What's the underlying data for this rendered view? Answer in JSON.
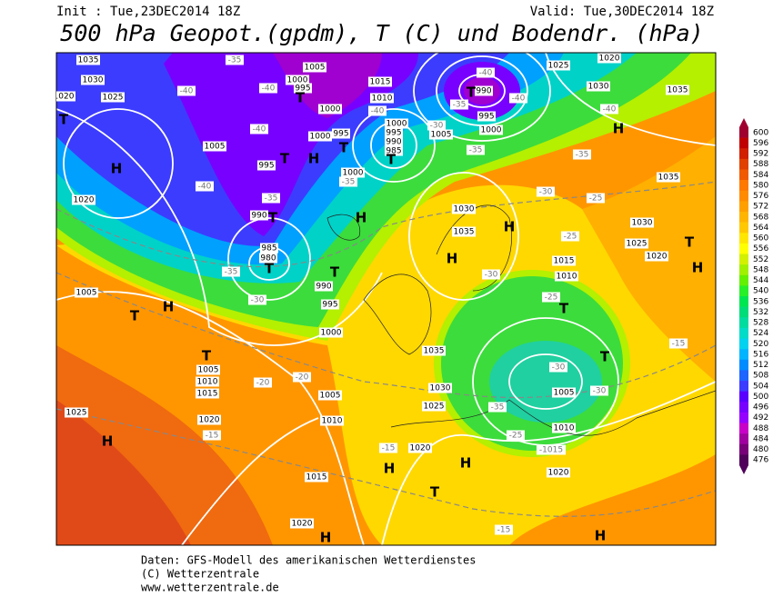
{
  "header": {
    "init": "Init : Tue,23DEC2014 18Z",
    "valid": "Valid: Tue,30DEC2014 18Z",
    "title": "500 hPa Geopot.(gpdm), T (C) und Bodendr. (hPa)"
  },
  "legend": {
    "values": [
      600,
      596,
      592,
      588,
      584,
      580,
      576,
      572,
      568,
      564,
      560,
      556,
      552,
      548,
      544,
      540,
      536,
      532,
      528,
      524,
      520,
      516,
      512,
      508,
      504,
      500,
      496,
      492,
      488,
      484,
      480,
      476
    ],
    "colors": [
      "#a00030",
      "#c00000",
      "#d02000",
      "#e04000",
      "#f05a00",
      "#ff7800",
      "#ff8c00",
      "#ffa000",
      "#ffb400",
      "#ffc800",
      "#ffe600",
      "#ffff00",
      "#d2f000",
      "#a0f000",
      "#64f000",
      "#28f028",
      "#00e650",
      "#00dc78",
      "#00dca0",
      "#00dcc8",
      "#00d2f0",
      "#00b4ff",
      "#008cff",
      "#1e64ff",
      "#3c3cff",
      "#5a00ff",
      "#7800ff",
      "#9600ff",
      "#c800c8",
      "#a000a0",
      "#780078",
      "#50005a"
    ]
  },
  "map": {
    "labels": [
      "1035",
      "1030",
      "1020",
      "1025",
      "T",
      "H",
      "1020",
      "-40",
      "-35",
      "1005",
      "1000",
      "995",
      "T",
      "-40",
      "1000",
      "-40",
      "1000",
      "995",
      "T",
      "H",
      "T",
      "1005",
      "995",
      "-40",
      "-35",
      "990",
      "T",
      "985",
      "980",
      "T",
      "-35",
      "-30",
      "T",
      "990",
      "995",
      "1005",
      "T",
      "H",
      "1000",
      "T",
      "1005",
      "1010",
      "1015",
      "-20",
      "-20",
      "1005",
      "1025",
      "H",
      "1020",
      "-15",
      "1010",
      "1015",
      "1020",
      "H",
      "1015",
      "1010",
      "-40",
      "1000",
      "995",
      "990",
      "985",
      "T",
      "1005",
      "-30",
      "1000",
      "-35",
      "H",
      "-35",
      "990",
      "T",
      "995",
      "-40",
      "-40",
      "1000",
      "-35",
      "1025",
      "1030",
      "1020",
      "1035",
      "-40",
      "H",
      "-35",
      "1035",
      "-30",
      "-25",
      "1030",
      "1025",
      "1020",
      "T",
      "H",
      "1030",
      "1035",
      "H",
      "H",
      "-25",
      "-30",
      "1015",
      "1010",
      "-25",
      "T",
      "1035",
      "-30",
      "1005",
      "-30",
      "1030",
      "1025",
      "-35",
      "1010",
      "-25",
      "-1015",
      "1020",
      "-15",
      "H",
      "H",
      "1020",
      "T",
      "-15",
      "H",
      "-15",
      "T"
    ]
  },
  "footer": {
    "lines": [
      "Daten: GFS-Modell des amerikanischen Wetterdienstes",
      "(C) Wetterzentrale",
      "www.wetterzentrale.de"
    ]
  }
}
